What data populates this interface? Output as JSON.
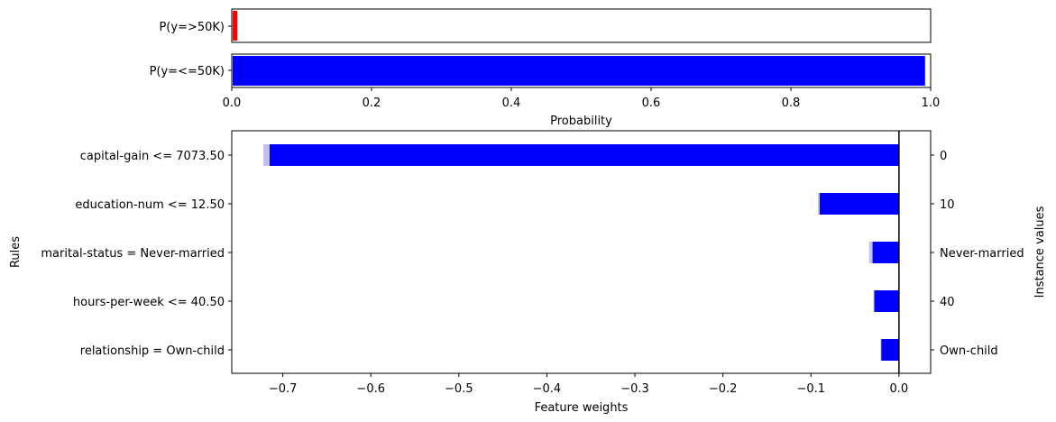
{
  "chart_data": [
    {
      "type": "bar",
      "orientation": "horizontal",
      "categories": [
        "P(y=>50K)",
        "P(y=<=50K)"
      ],
      "values": [
        0.008,
        0.992
      ],
      "colors": [
        "#ff0000",
        "#0000ff"
      ],
      "xlabel": "Probability",
      "xlim": [
        0,
        1
      ],
      "xticks": [
        "0.0",
        "0.2",
        "0.4",
        "0.6",
        "0.8",
        "1.0"
      ],
      "grid": false
    },
    {
      "type": "bar",
      "orientation": "horizontal",
      "categories": [
        "capital-gain <= 7073.50",
        "education-num <= 12.50",
        "marital-status = Never-married",
        "hours-per-week <= 40.50",
        "relationship = Own-child"
      ],
      "values": [
        -0.715,
        -0.09,
        -0.03,
        -0.028,
        -0.02
      ],
      "interval_low": [
        -0.722,
        -0.092,
        -0.034,
        -0.029,
        -0.021
      ],
      "instance_values": [
        "0",
        "10",
        "Never-married",
        "40",
        "Own-child"
      ],
      "color": "#0000ff",
      "interval_color": "#c0c0ee",
      "xlabel": "Feature weights",
      "ylabel": "Rules",
      "y2label": "Instance values",
      "xlim": [
        -0.758,
        0.036
      ],
      "xticks": [
        -0.7,
        -0.6,
        -0.5,
        -0.4,
        -0.3,
        -0.2,
        -0.1,
        0.0
      ],
      "xtick_labels": [
        "−0.7",
        "−0.6",
        "−0.5",
        "−0.4",
        "−0.3",
        "−0.2",
        "−0.1",
        "0.0"
      ],
      "grid": false
    }
  ]
}
